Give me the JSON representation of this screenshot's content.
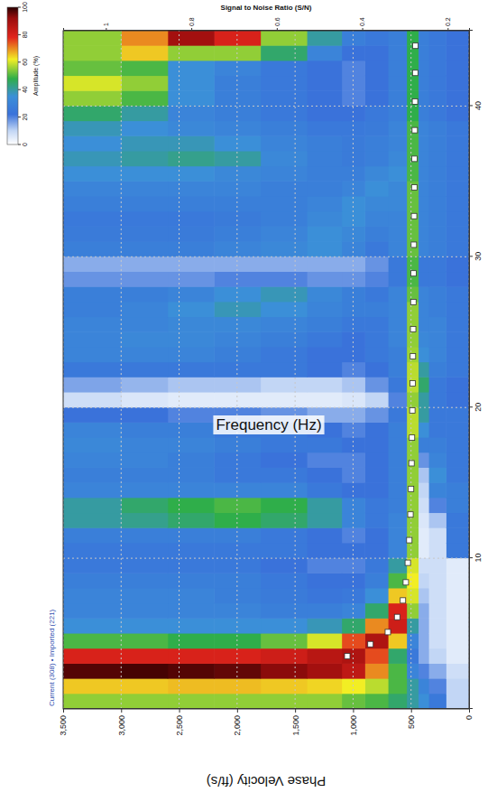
{
  "chart_data": {
    "type": "heatmap",
    "xlabel": "Frequency (Hz)",
    "ylabel": "Phase Velocity (ft/s)",
    "y2label": "Signal to Noise Ratio (S/N)",
    "annotation": "Current (308) • Imported (221)",
    "xlim": [
      0,
      45
    ],
    "xticks": [
      10,
      20,
      30,
      40
    ],
    "ylim": [
      0,
      3500
    ],
    "yticks": [
      {
        "value": 3500,
        "label": "3,500"
      },
      {
        "value": 3000,
        "label": "3,000"
      },
      {
        "value": 2500,
        "label": "2,500"
      },
      {
        "value": 2000,
        "label": "2,000"
      },
      {
        "value": 1500,
        "label": "1,500"
      },
      {
        "value": 1000,
        "label": "1,000"
      },
      500,
      0
    ],
    "y2lim": [
      0.15,
      1.1
    ],
    "y2ticks": [
      0.2,
      0.4,
      0.6,
      0.8,
      1
    ],
    "grid": true,
    "frequency_bins": [
      0,
      1,
      2,
      3,
      4,
      5,
      6,
      7,
      8,
      9,
      10,
      11,
      12,
      13,
      14,
      15,
      16,
      17,
      18,
      19,
      20,
      21,
      22,
      23,
      24,
      25,
      26,
      27,
      28,
      29,
      30,
      31,
      32,
      33,
      34,
      35,
      36,
      37,
      38,
      39,
      40,
      41,
      42,
      43,
      44,
      45
    ],
    "velocity_bins": [
      0,
      200,
      350,
      440,
      540,
      700,
      900,
      1100,
      1400,
      1800,
      2200,
      2600,
      3000,
      3500
    ],
    "cells": [
      [
        10,
        25,
        35,
        40,
        45,
        50,
        52,
        55,
        55,
        55,
        55,
        55,
        55
      ],
      [
        10,
        20,
        30,
        40,
        50,
        58,
        62,
        64,
        65,
        66,
        66,
        65,
        65
      ],
      [
        8,
        15,
        20,
        30,
        50,
        70,
        85,
        90,
        93,
        96,
        97,
        98,
        97
      ],
      [
        5,
        10,
        15,
        25,
        45,
        75,
        88,
        86,
        82,
        80,
        80,
        80,
        80
      ],
      [
        5,
        8,
        15,
        30,
        65,
        88,
        75,
        60,
        52,
        48,
        48,
        50,
        50
      ],
      [
        5,
        8,
        15,
        40,
        82,
        70,
        45,
        38,
        35,
        35,
        35,
        35,
        35
      ],
      [
        5,
        8,
        15,
        55,
        80,
        45,
        30,
        28,
        28,
        30,
        30,
        30,
        30
      ],
      [
        5,
        8,
        12,
        60,
        65,
        35,
        25,
        24,
        26,
        28,
        30,
        30,
        30
      ],
      [
        5,
        8,
        10,
        62,
        50,
        28,
        22,
        22,
        25,
        28,
        28,
        28,
        28
      ],
      [
        5,
        8,
        8,
        60,
        40,
        25,
        20,
        20,
        22,
        25,
        25,
        25,
        25
      ],
      [
        25,
        8,
        5,
        55,
        30,
        22,
        22,
        22,
        25,
        25,
        25,
        25,
        25
      ],
      [
        25,
        8,
        5,
        55,
        30,
        22,
        20,
        22,
        25,
        28,
        28,
        28,
        28
      ],
      [
        25,
        12,
        6,
        55,
        30,
        25,
        30,
        40,
        45,
        48,
        45,
        42,
        40
      ],
      [
        28,
        20,
        8,
        55,
        28,
        25,
        30,
        40,
        48,
        50,
        48,
        45,
        40
      ],
      [
        28,
        30,
        10,
        55,
        28,
        22,
        22,
        25,
        30,
        30,
        30,
        30,
        30
      ],
      [
        25,
        35,
        12,
        55,
        28,
        22,
        20,
        22,
        25,
        25,
        28,
        28,
        28
      ],
      [
        25,
        30,
        18,
        55,
        28,
        22,
        20,
        20,
        22,
        25,
        28,
        30,
        30
      ],
      [
        25,
        28,
        28,
        55,
        28,
        22,
        22,
        25,
        25,
        28,
        30,
        30,
        32
      ],
      [
        25,
        25,
        35,
        58,
        28,
        22,
        20,
        22,
        25,
        25,
        28,
        28,
        30
      ],
      [
        25,
        25,
        40,
        58,
        25,
        18,
        15,
        15,
        18,
        20,
        20,
        22,
        22
      ],
      [
        22,
        25,
        40,
        55,
        20,
        10,
        6,
        5,
        5,
        5,
        5,
        6,
        8
      ],
      [
        22,
        25,
        45,
        58,
        25,
        18,
        12,
        10,
        10,
        12,
        12,
        14,
        16
      ],
      [
        25,
        28,
        40,
        58,
        28,
        22,
        20,
        22,
        25,
        25,
        25,
        25,
        25
      ],
      [
        25,
        30,
        35,
        56,
        28,
        25,
        22,
        22,
        25,
        28,
        30,
        30,
        30
      ],
      [
        25,
        30,
        32,
        55,
        30,
        25,
        22,
        25,
        28,
        30,
        32,
        32,
        30
      ],
      [
        25,
        30,
        30,
        55,
        30,
        25,
        25,
        28,
        30,
        32,
        32,
        30,
        30
      ],
      [
        25,
        28,
        30,
        55,
        30,
        28,
        28,
        30,
        35,
        38,
        35,
        30,
        28
      ],
      [
        25,
        28,
        30,
        52,
        30,
        25,
        28,
        32,
        38,
        35,
        30,
        28,
        28
      ],
      [
        22,
        25,
        25,
        50,
        25,
        20,
        18,
        18,
        20,
        20,
        18,
        18,
        18
      ],
      [
        22,
        25,
        25,
        50,
        25,
        18,
        15,
        15,
        15,
        15,
        15,
        15,
        15
      ],
      [
        25,
        28,
        30,
        52,
        30,
        25,
        30,
        35,
        32,
        30,
        28,
        28,
        28
      ],
      [
        25,
        28,
        30,
        52,
        30,
        28,
        32,
        35,
        30,
        28,
        26,
        26,
        26
      ],
      [
        25,
        28,
        30,
        52,
        30,
        30,
        35,
        32,
        28,
        26,
        25,
        25,
        25
      ],
      [
        25,
        28,
        30,
        52,
        32,
        32,
        35,
        30,
        28,
        28,
        28,
        28,
        28
      ],
      [
        25,
        28,
        30,
        52,
        32,
        35,
        30,
        28,
        28,
        30,
        30,
        30,
        30
      ],
      [
        25,
        28,
        30,
        50,
        35,
        32,
        28,
        28,
        30,
        32,
        35,
        35,
        35
      ],
      [
        25,
        28,
        30,
        50,
        32,
        28,
        26,
        28,
        32,
        40,
        42,
        40,
        38
      ],
      [
        25,
        28,
        30,
        50,
        30,
        28,
        26,
        28,
        30,
        35,
        38,
        38,
        35
      ],
      [
        25,
        28,
        30,
        50,
        30,
        26,
        25,
        25,
        28,
        30,
        32,
        35,
        38
      ],
      [
        22,
        25,
        28,
        48,
        28,
        25,
        22,
        22,
        25,
        28,
        30,
        40,
        45
      ],
      [
        22,
        25,
        28,
        48,
        28,
        22,
        20,
        22,
        25,
        28,
        35,
        50,
        55
      ],
      [
        22,
        25,
        28,
        48,
        28,
        22,
        20,
        22,
        25,
        28,
        35,
        55,
        60
      ],
      [
        22,
        25,
        28,
        48,
        28,
        22,
        20,
        22,
        25,
        30,
        35,
        50,
        52
      ],
      [
        22,
        25,
        28,
        48,
        28,
        22,
        22,
        30,
        45,
        55,
        55,
        65,
        55
      ],
      [
        22,
        25,
        28,
        48,
        28,
        25,
        28,
        40,
        55,
        80,
        90,
        70,
        55
      ]
    ],
    "colorbar": {
      "label": "Amplitude (%)",
      "range": [
        0,
        100
      ],
      "ticks": [
        0,
        20,
        40,
        60,
        80,
        100
      ]
    },
    "series": [
      {
        "type": "scatter",
        "marker": "square",
        "color": "#ffffff",
        "x": [
          3.5,
          4.3,
          5.1,
          6.1,
          7.2,
          8.4,
          9.7,
          11.2,
          12.9,
          14.6,
          16.3,
          18.0,
          19.8,
          21.6,
          23.4,
          25.2,
          27.0,
          28.9,
          30.8,
          32.7,
          34.6,
          36.5,
          38.4,
          40.3,
          42.2,
          44.0
        ],
        "values": [
          1050,
          850,
          700,
          620,
          570,
          545,
          528,
          515,
          505,
          500,
          496,
          492,
          489,
          486,
          484,
          482,
          480,
          478,
          476,
          474,
          472,
          470,
          468,
          466,
          464,
          462
        ]
      }
    ]
  }
}
